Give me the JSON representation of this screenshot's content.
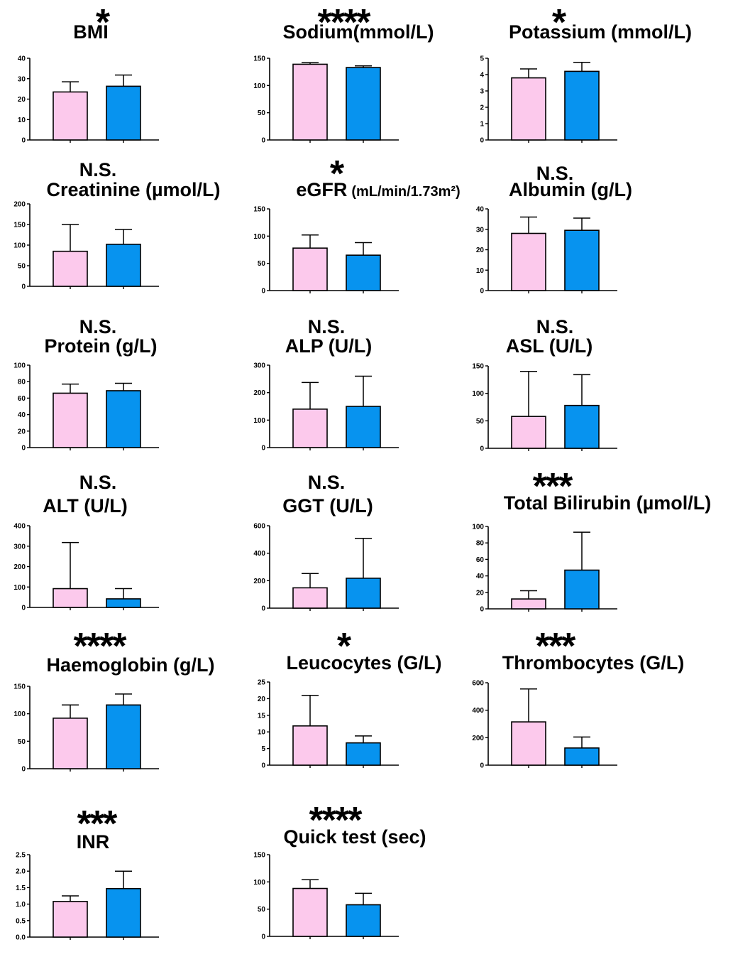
{
  "colors": {
    "group_a": "#fcc9ec",
    "group_b": "#0793ef",
    "axis": "#000000"
  },
  "chart_data": [
    {
      "type": "bar",
      "title": "BMI",
      "significance": "*",
      "yticks": [
        "0",
        "10",
        "20",
        "30",
        "40"
      ],
      "ylim": [
        0,
        40
      ],
      "values": [
        23.5,
        26.3
      ],
      "errors": [
        28.5,
        31.8
      ]
    },
    {
      "type": "bar",
      "title": "Sodium(mmol/L)",
      "significance": "****",
      "yticks": [
        "0",
        "50",
        "100",
        "150"
      ],
      "ylim": [
        0,
        150
      ],
      "values": [
        139,
        133
      ],
      "errors": [
        142,
        136
      ]
    },
    {
      "type": "bar",
      "title": "Potassium (mmol/L)",
      "significance": "*",
      "yticks": [
        "0",
        "1",
        "2",
        "3",
        "4",
        "5"
      ],
      "ylim": [
        0,
        5
      ],
      "values": [
        3.8,
        4.2
      ],
      "errors": [
        4.35,
        4.75
      ]
    },
    {
      "type": "bar",
      "title": "Creatinine (µmol/L)",
      "significance": "N.S.",
      "yticks": [
        "0",
        "50",
        "100",
        "150",
        "200"
      ],
      "ylim": [
        0,
        200
      ],
      "values": [
        85,
        102
      ],
      "errors": [
        150,
        138
      ]
    },
    {
      "type": "bar",
      "title": "eGFR",
      "title_unit": "(mL/min/1.73m²)",
      "significance": "*",
      "yticks": [
        "0",
        "50",
        "100",
        "150"
      ],
      "ylim": [
        0,
        150
      ],
      "values": [
        78,
        65
      ],
      "errors": [
        102,
        88
      ]
    },
    {
      "type": "bar",
      "title": "Albumin (g/L)",
      "significance": "N.S.",
      "yticks": [
        "0",
        "10",
        "20",
        "30",
        "40"
      ],
      "ylim": [
        0,
        40
      ],
      "values": [
        28,
        29.5
      ],
      "errors": [
        36,
        35.5
      ]
    },
    {
      "type": "bar",
      "title": "Protein (g/L)",
      "significance": "N.S.",
      "yticks": [
        "0",
        "20",
        "40",
        "60",
        "80",
        "100"
      ],
      "ylim": [
        0,
        100
      ],
      "values": [
        66,
        69
      ],
      "errors": [
        77,
        78
      ]
    },
    {
      "type": "bar",
      "title": "ALP (U/L)",
      "significance": "N.S.",
      "yticks": [
        "0",
        "100",
        "200",
        "300"
      ],
      "ylim": [
        0,
        300
      ],
      "values": [
        140,
        150
      ],
      "errors": [
        237,
        260
      ]
    },
    {
      "type": "bar",
      "title": "ASL (U/L)",
      "significance": "N.S.",
      "yticks": [
        "0",
        "50",
        "100",
        "150"
      ],
      "ylim": [
        0,
        150
      ],
      "values": [
        58,
        78
      ],
      "errors": [
        140,
        134
      ]
    },
    {
      "type": "bar",
      "title": "ALT (U/L)",
      "significance": "N.S.",
      "yticks": [
        "0",
        "100",
        "200",
        "300",
        "400"
      ],
      "ylim": [
        0,
        400
      ],
      "values": [
        92,
        42
      ],
      "errors": [
        318,
        92
      ]
    },
    {
      "type": "bar",
      "title": "GGT (U/L)",
      "significance": "N.S.",
      "yticks": [
        "0",
        "200",
        "400",
        "600"
      ],
      "ylim": [
        0,
        600
      ],
      "values": [
        148,
        218
      ],
      "errors": [
        252,
        508
      ]
    },
    {
      "type": "bar",
      "title": "Total Bilirubin (µmol/L)",
      "significance": "***",
      "yticks": [
        "0",
        "20",
        "40",
        "60",
        "80",
        "100"
      ],
      "ylim": [
        0,
        100
      ],
      "values": [
        12,
        47
      ],
      "errors": [
        22,
        93
      ]
    },
    {
      "type": "bar",
      "title": "Haemoglobin (g/L)",
      "significance": "****",
      "yticks": [
        "0",
        "50",
        "100",
        "150"
      ],
      "ylim": [
        0,
        150
      ],
      "values": [
        92,
        116
      ],
      "errors": [
        116,
        136
      ]
    },
    {
      "type": "bar",
      "title": "Leucocytes (G/L)",
      "significance": "*",
      "yticks": [
        "0",
        "5",
        "10",
        "15",
        "20",
        "25"
      ],
      "ylim": [
        0,
        25
      ],
      "values": [
        11.8,
        6.7
      ],
      "errors": [
        21,
        8.8
      ]
    },
    {
      "type": "bar",
      "title": "Thrombocytes (G/L)",
      "significance": "***",
      "yticks": [
        "0",
        "200",
        "400",
        "600"
      ],
      "ylim": [
        0,
        600
      ],
      "values": [
        315,
        125
      ],
      "errors": [
        555,
        205
      ]
    },
    {
      "type": "bar",
      "title": "INR",
      "significance": "***",
      "yticks": [
        "0.0",
        "0.5",
        "1.0",
        "1.5",
        "2.0",
        "2.5"
      ],
      "ylim": [
        0,
        2.5
      ],
      "values": [
        1.08,
        1.47
      ],
      "errors": [
        1.25,
        2.0
      ]
    },
    {
      "type": "bar",
      "title": "Quick test (sec)",
      "significance": "****",
      "yticks": [
        "0",
        "50",
        "100",
        "150"
      ],
      "ylim": [
        0,
        150
      ],
      "values": [
        88,
        58
      ],
      "errors": [
        104,
        79
      ]
    }
  ]
}
